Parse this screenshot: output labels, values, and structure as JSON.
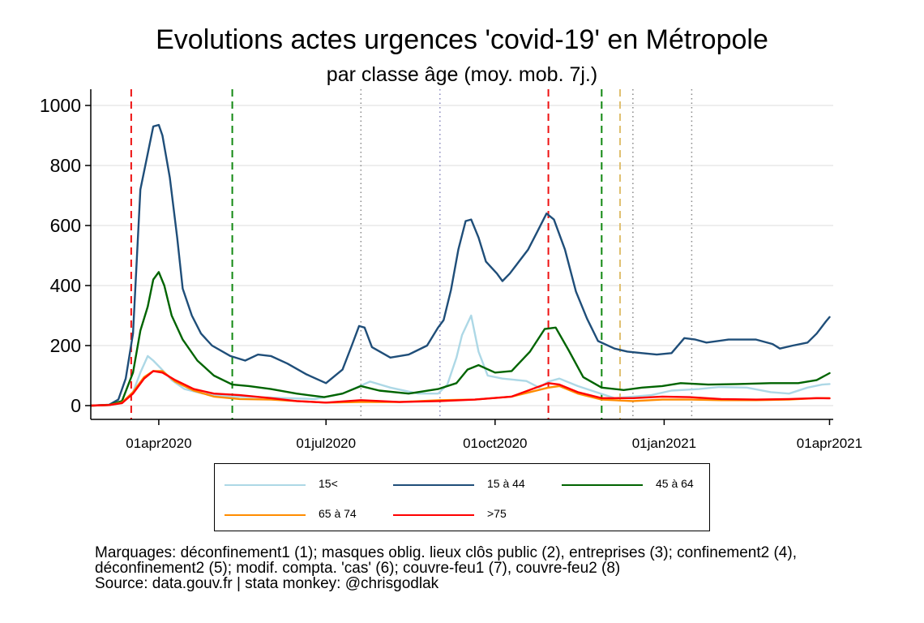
{
  "chart_data": {
    "type": "line",
    "title": "Evolutions actes urgences 'covid-19' en Métropole",
    "subtitle": "par classe âge (moy. mob. 7j.)",
    "ylim": [
      0,
      1000
    ],
    "yticks": [
      0,
      200,
      400,
      600,
      800,
      1000
    ],
    "xlim": [
      "2020-02-24",
      "2021-04-03"
    ],
    "xticks": [
      {
        "date": "2020-04-01",
        "label": "01apr2020"
      },
      {
        "date": "2020-07-01",
        "label": "01jul2020"
      },
      {
        "date": "2020-10-01",
        "label": "01oct2020"
      },
      {
        "date": "2021-01-01",
        "label": "01jan2021"
      },
      {
        "date": "2021-04-01",
        "label": "01apr2021"
      }
    ],
    "grid": true,
    "legend_position": "bottom",
    "markers": [
      {
        "date": "2020-03-17",
        "style": "dash",
        "color": "#ee1111"
      },
      {
        "date": "2020-05-11",
        "style": "dash",
        "color": "#118811"
      },
      {
        "date": "2020-07-20",
        "style": "dot",
        "color": "#888888"
      },
      {
        "date": "2020-09-01",
        "style": "dot",
        "color": "#8888bb"
      },
      {
        "date": "2020-10-30",
        "style": "dash",
        "color": "#ee1111"
      },
      {
        "date": "2020-11-28",
        "style": "dash",
        "color": "#118811"
      },
      {
        "date": "2020-12-08",
        "style": "dash",
        "color": "#e0c070"
      },
      {
        "date": "2020-12-15",
        "style": "dot",
        "color": "#888888"
      },
      {
        "date": "2021-01-16",
        "style": "dot",
        "color": "#888888"
      }
    ],
    "series": [
      {
        "name": "15<",
        "color": "#add8e6",
        "points": [
          [
            "2020-02-24",
            0
          ],
          [
            "2020-03-05",
            2
          ],
          [
            "2020-03-12",
            8
          ],
          [
            "2020-03-18",
            45
          ],
          [
            "2020-03-22",
            110
          ],
          [
            "2020-03-26",
            165
          ],
          [
            "2020-03-29",
            150
          ],
          [
            "2020-04-02",
            125
          ],
          [
            "2020-04-08",
            85
          ],
          [
            "2020-04-15",
            55
          ],
          [
            "2020-04-25",
            40
          ],
          [
            "2020-05-10",
            30
          ],
          [
            "2020-05-25",
            28
          ],
          [
            "2020-06-10",
            25
          ],
          [
            "2020-06-25",
            22
          ],
          [
            "2020-07-10",
            40
          ],
          [
            "2020-07-25",
            80
          ],
          [
            "2020-08-05",
            60
          ],
          [
            "2020-08-20",
            40
          ],
          [
            "2020-08-31",
            40
          ],
          [
            "2020-09-05",
            70
          ],
          [
            "2020-09-10",
            160
          ],
          [
            "2020-09-13",
            235
          ],
          [
            "2020-09-18",
            300
          ],
          [
            "2020-09-22",
            180
          ],
          [
            "2020-09-27",
            100
          ],
          [
            "2020-10-05",
            90
          ],
          [
            "2020-10-18",
            82
          ],
          [
            "2020-10-25",
            60
          ],
          [
            "2020-10-30",
            80
          ],
          [
            "2020-11-05",
            90
          ],
          [
            "2020-11-15",
            65
          ],
          [
            "2020-11-25",
            45
          ],
          [
            "2020-12-05",
            25
          ],
          [
            "2020-12-15",
            30
          ],
          [
            "2020-12-25",
            35
          ],
          [
            "2021-01-05",
            50
          ],
          [
            "2021-01-20",
            55
          ],
          [
            "2021-01-31",
            62
          ],
          [
            "2021-02-15",
            60
          ],
          [
            "2021-02-28",
            45
          ],
          [
            "2021-03-10",
            40
          ],
          [
            "2021-03-20",
            60
          ],
          [
            "2021-03-28",
            70
          ],
          [
            "2021-04-01",
            72
          ]
        ]
      },
      {
        "name": "15 à 44",
        "color": "#1f4e79",
        "points": [
          [
            "2020-02-24",
            0
          ],
          [
            "2020-03-05",
            3
          ],
          [
            "2020-03-10",
            20
          ],
          [
            "2020-03-14",
            90
          ],
          [
            "2020-03-18",
            240
          ],
          [
            "2020-03-22",
            720
          ],
          [
            "2020-03-26",
            840
          ],
          [
            "2020-03-29",
            930
          ],
          [
            "2020-04-01",
            935
          ],
          [
            "2020-04-03",
            900
          ],
          [
            "2020-04-07",
            760
          ],
          [
            "2020-04-11",
            560
          ],
          [
            "2020-04-14",
            390
          ],
          [
            "2020-04-19",
            300
          ],
          [
            "2020-04-24",
            240
          ],
          [
            "2020-04-30",
            200
          ],
          [
            "2020-05-10",
            165
          ],
          [
            "2020-05-18",
            150
          ],
          [
            "2020-05-25",
            170
          ],
          [
            "2020-06-01",
            165
          ],
          [
            "2020-06-10",
            140
          ],
          [
            "2020-06-20",
            105
          ],
          [
            "2020-07-01",
            75
          ],
          [
            "2020-07-10",
            120
          ],
          [
            "2020-07-15",
            200
          ],
          [
            "2020-07-19",
            265
          ],
          [
            "2020-07-22",
            260
          ],
          [
            "2020-07-26",
            195
          ],
          [
            "2020-08-05",
            160
          ],
          [
            "2020-08-15",
            170
          ],
          [
            "2020-08-25",
            200
          ],
          [
            "2020-08-31",
            260
          ],
          [
            "2020-09-03",
            285
          ],
          [
            "2020-09-07",
            385
          ],
          [
            "2020-09-11",
            520
          ],
          [
            "2020-09-15",
            615
          ],
          [
            "2020-09-18",
            620
          ],
          [
            "2020-09-22",
            560
          ],
          [
            "2020-09-26",
            480
          ],
          [
            "2020-10-02",
            440
          ],
          [
            "2020-10-05",
            415
          ],
          [
            "2020-10-09",
            440
          ],
          [
            "2020-10-14",
            480
          ],
          [
            "2020-10-19",
            520
          ],
          [
            "2020-10-24",
            580
          ],
          [
            "2020-10-29",
            640
          ],
          [
            "2020-11-02",
            620
          ],
          [
            "2020-11-08",
            520
          ],
          [
            "2020-11-14",
            380
          ],
          [
            "2020-11-20",
            290
          ],
          [
            "2020-11-26",
            215
          ],
          [
            "2020-12-05",
            190
          ],
          [
            "2020-12-12",
            180
          ],
          [
            "2020-12-20",
            175
          ],
          [
            "2020-12-28",
            170
          ],
          [
            "2021-01-05",
            175
          ],
          [
            "2021-01-12",
            225
          ],
          [
            "2021-01-18",
            220
          ],
          [
            "2021-01-24",
            210
          ],
          [
            "2021-02-05",
            220
          ],
          [
            "2021-02-20",
            220
          ],
          [
            "2021-03-01",
            205
          ],
          [
            "2021-03-05",
            190
          ],
          [
            "2021-03-12",
            200
          ],
          [
            "2021-03-20",
            210
          ],
          [
            "2021-03-25",
            240
          ],
          [
            "2021-03-30",
            280
          ],
          [
            "2021-04-01",
            295
          ]
        ]
      },
      {
        "name": "45 à 64",
        "color": "#006400",
        "points": [
          [
            "2020-02-24",
            0
          ],
          [
            "2020-03-05",
            2
          ],
          [
            "2020-03-12",
            15
          ],
          [
            "2020-03-18",
            110
          ],
          [
            "2020-03-22",
            250
          ],
          [
            "2020-03-26",
            330
          ],
          [
            "2020-03-29",
            420
          ],
          [
            "2020-04-01",
            445
          ],
          [
            "2020-04-04",
            400
          ],
          [
            "2020-04-08",
            300
          ],
          [
            "2020-04-14",
            220
          ],
          [
            "2020-04-22",
            150
          ],
          [
            "2020-05-01",
            100
          ],
          [
            "2020-05-11",
            70
          ],
          [
            "2020-05-20",
            65
          ],
          [
            "2020-06-01",
            55
          ],
          [
            "2020-06-15",
            40
          ],
          [
            "2020-06-30",
            28
          ],
          [
            "2020-07-10",
            40
          ],
          [
            "2020-07-20",
            65
          ],
          [
            "2020-07-30",
            50
          ],
          [
            "2020-08-15",
            40
          ],
          [
            "2020-08-31",
            55
          ],
          [
            "2020-09-10",
            75
          ],
          [
            "2020-09-16",
            120
          ],
          [
            "2020-09-22",
            135
          ],
          [
            "2020-10-01",
            110
          ],
          [
            "2020-10-10",
            115
          ],
          [
            "2020-10-20",
            180
          ],
          [
            "2020-10-28",
            255
          ],
          [
            "2020-11-03",
            260
          ],
          [
            "2020-11-10",
            185
          ],
          [
            "2020-11-18",
            95
          ],
          [
            "2020-11-28",
            60
          ],
          [
            "2020-12-10",
            52
          ],
          [
            "2020-12-20",
            60
          ],
          [
            "2020-12-31",
            65
          ],
          [
            "2021-01-10",
            75
          ],
          [
            "2021-01-25",
            70
          ],
          [
            "2021-02-10",
            72
          ],
          [
            "2021-02-28",
            75
          ],
          [
            "2021-03-15",
            75
          ],
          [
            "2021-03-25",
            85
          ],
          [
            "2021-04-01",
            108
          ]
        ]
      },
      {
        "name": "65 à 74",
        "color": "#ff8c00",
        "points": [
          [
            "2020-02-24",
            0
          ],
          [
            "2020-03-05",
            2
          ],
          [
            "2020-03-12",
            10
          ],
          [
            "2020-03-18",
            45
          ],
          [
            "2020-03-24",
            95
          ],
          [
            "2020-03-29",
            115
          ],
          [
            "2020-04-03",
            115
          ],
          [
            "2020-04-10",
            80
          ],
          [
            "2020-04-20",
            50
          ],
          [
            "2020-05-01",
            30
          ],
          [
            "2020-05-15",
            22
          ],
          [
            "2020-06-01",
            20
          ],
          [
            "2020-06-15",
            15
          ],
          [
            "2020-07-01",
            10
          ],
          [
            "2020-07-20",
            12
          ],
          [
            "2020-08-10",
            12
          ],
          [
            "2020-09-01",
            18
          ],
          [
            "2020-09-20",
            20
          ],
          [
            "2020-10-10",
            30
          ],
          [
            "2020-10-30",
            60
          ],
          [
            "2020-11-05",
            65
          ],
          [
            "2020-11-15",
            40
          ],
          [
            "2020-11-28",
            20
          ],
          [
            "2020-12-15",
            15
          ],
          [
            "2020-12-31",
            20
          ],
          [
            "2021-01-15",
            20
          ],
          [
            "2021-02-01",
            18
          ],
          [
            "2021-02-20",
            18
          ],
          [
            "2021-03-10",
            20
          ],
          [
            "2021-03-25",
            25
          ],
          [
            "2021-04-01",
            25
          ]
        ]
      },
      {
        "name": ">75",
        "color": "#ff0000",
        "points": [
          [
            "2020-02-24",
            0
          ],
          [
            "2020-03-05",
            2
          ],
          [
            "2020-03-12",
            8
          ],
          [
            "2020-03-18",
            40
          ],
          [
            "2020-03-24",
            90
          ],
          [
            "2020-03-29",
            115
          ],
          [
            "2020-04-03",
            110
          ],
          [
            "2020-04-10",
            85
          ],
          [
            "2020-04-20",
            55
          ],
          [
            "2020-05-01",
            40
          ],
          [
            "2020-05-15",
            35
          ],
          [
            "2020-06-01",
            25
          ],
          [
            "2020-06-15",
            15
          ],
          [
            "2020-07-01",
            10
          ],
          [
            "2020-07-20",
            18
          ],
          [
            "2020-08-10",
            12
          ],
          [
            "2020-09-01",
            15
          ],
          [
            "2020-09-20",
            20
          ],
          [
            "2020-10-10",
            30
          ],
          [
            "2020-10-30",
            75
          ],
          [
            "2020-11-05",
            70
          ],
          [
            "2020-11-15",
            45
          ],
          [
            "2020-11-28",
            25
          ],
          [
            "2020-12-15",
            25
          ],
          [
            "2020-12-31",
            30
          ],
          [
            "2021-01-15",
            28
          ],
          [
            "2021-02-01",
            22
          ],
          [
            "2021-02-20",
            20
          ],
          [
            "2021-03-10",
            22
          ],
          [
            "2021-03-25",
            25
          ],
          [
            "2021-04-01",
            24
          ]
        ]
      }
    ],
    "notes": [
      "Marquages: déconfinement1 (1); masques oblig. lieux clôs public (2), entreprises (3); confinement2 (4),",
      "déconfinement2 (5); modif. compta. 'cas' (6); couvre-feu1 (7), couvre-feu2 (8)",
      "Source: data.gouv.fr | stata monkey: @chrisgodlak"
    ]
  }
}
